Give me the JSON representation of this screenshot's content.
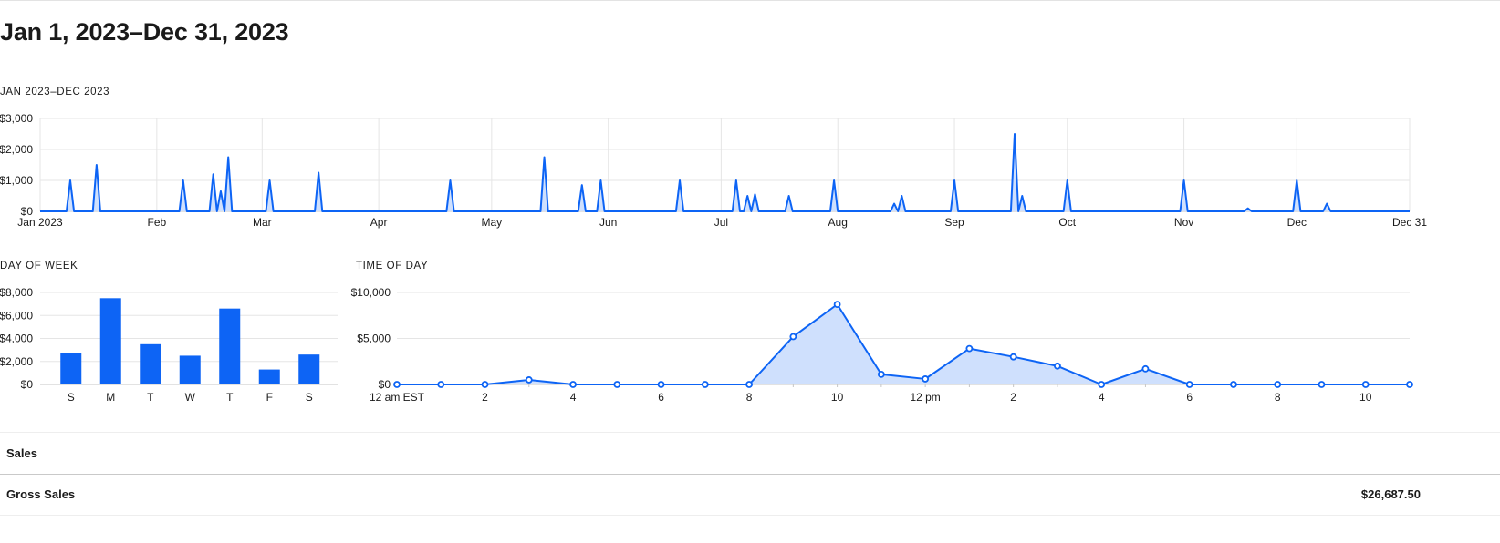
{
  "page": {
    "title": "Jan 1, 2023–Dec 31, 2023"
  },
  "colors": {
    "accent": "#0d64f5",
    "area_fill": "#cfe0fd",
    "grid": "#e5e5e5",
    "axis": "#c6c6c6"
  },
  "chart_data": [
    {
      "id": "daily",
      "type": "area",
      "title": "JAN 2023–DEC 2023",
      "x_range": [
        "2023-01-01",
        "2023-12-31"
      ],
      "x_tick_labels": [
        "Jan 2023",
        "Feb",
        "Mar",
        "Apr",
        "May",
        "Jun",
        "Jul",
        "Aug",
        "Sep",
        "Oct",
        "Nov",
        "Dec",
        "Dec 31"
      ],
      "x_tick_dates": [
        "2023-01-01",
        "2023-02-01",
        "2023-03-01",
        "2023-04-01",
        "2023-05-01",
        "2023-06-01",
        "2023-07-01",
        "2023-08-01",
        "2023-09-01",
        "2023-10-01",
        "2023-11-01",
        "2023-12-01",
        "2023-12-31"
      ],
      "ylim": [
        0,
        3000
      ],
      "y_ticks": [
        0,
        1000,
        2000,
        3000
      ],
      "y_tick_labels": [
        "$0",
        "$1,000",
        "$2,000",
        "$3,000"
      ],
      "grid": true,
      "baseline": 0,
      "points": [
        {
          "x": "2023-01-09",
          "y": 1000
        },
        {
          "x": "2023-01-16",
          "y": 1500
        },
        {
          "x": "2023-02-08",
          "y": 1000
        },
        {
          "x": "2023-02-16",
          "y": 1200
        },
        {
          "x": "2023-02-18",
          "y": 650
        },
        {
          "x": "2023-02-20",
          "y": 1750
        },
        {
          "x": "2023-03-03",
          "y": 1000
        },
        {
          "x": "2023-03-16",
          "y": 1250
        },
        {
          "x": "2023-04-20",
          "y": 1000
        },
        {
          "x": "2023-05-15",
          "y": 1750
        },
        {
          "x": "2023-05-25",
          "y": 850
        },
        {
          "x": "2023-05-30",
          "y": 1000
        },
        {
          "x": "2023-06-20",
          "y": 1000
        },
        {
          "x": "2023-07-05",
          "y": 1000
        },
        {
          "x": "2023-07-08",
          "y": 500
        },
        {
          "x": "2023-07-10",
          "y": 550
        },
        {
          "x": "2023-07-19",
          "y": 500
        },
        {
          "x": "2023-07-31",
          "y": 1000
        },
        {
          "x": "2023-08-16",
          "y": 250
        },
        {
          "x": "2023-08-18",
          "y": 500
        },
        {
          "x": "2023-09-01",
          "y": 1000
        },
        {
          "x": "2023-09-17",
          "y": 2500
        },
        {
          "x": "2023-09-19",
          "y": 500
        },
        {
          "x": "2023-10-01",
          "y": 1000
        },
        {
          "x": "2023-11-01",
          "y": 1000
        },
        {
          "x": "2023-11-18",
          "y": 100
        },
        {
          "x": "2023-12-01",
          "y": 1000
        },
        {
          "x": "2023-12-09",
          "y": 250
        }
      ]
    },
    {
      "id": "weekday",
      "type": "bar",
      "title": "DAY OF WEEK",
      "categories": [
        "S",
        "M",
        "T",
        "W",
        "T",
        "F",
        "S"
      ],
      "values": [
        2700,
        7500,
        3500,
        2500,
        6600,
        1300,
        2600
      ],
      "ylim": [
        0,
        8000
      ],
      "y_ticks": [
        0,
        2000,
        4000,
        6000,
        8000
      ],
      "y_tick_labels": [
        "$0",
        "$2,000",
        "$4,000",
        "$6,000",
        "$8,000"
      ],
      "grid": true
    },
    {
      "id": "hourly",
      "type": "area",
      "title": "TIME OF DAY",
      "categories": [
        "12 am EST",
        "1",
        "2",
        "3",
        "4",
        "5",
        "6",
        "7",
        "8",
        "9",
        "10",
        "11",
        "12 pm",
        "1",
        "2",
        "3",
        "4",
        "5",
        "6",
        "7",
        "8",
        "9",
        "10",
        "11"
      ],
      "x_tick_labels": [
        "12 am EST",
        "",
        "2",
        "",
        "4",
        "",
        "6",
        "",
        "8",
        "",
        "10",
        "",
        "12 pm",
        "",
        "2",
        "",
        "4",
        "",
        "6",
        "",
        "8",
        "",
        "10",
        ""
      ],
      "values": [
        0,
        0,
        0,
        500,
        0,
        0,
        0,
        0,
        0,
        5200,
        8700,
        1100,
        600,
        3900,
        3000,
        2000,
        0,
        1700,
        0,
        0,
        0,
        0,
        0,
        0
      ],
      "ylim": [
        0,
        10000
      ],
      "y_ticks": [
        0,
        5000,
        10000
      ],
      "y_tick_labels": [
        "$0",
        "$5,000",
        "$10,000"
      ],
      "grid": true,
      "markers": true
    }
  ],
  "table": {
    "header_label": "Sales",
    "rows": [
      {
        "label": "Gross Sales",
        "value": "$26,687.50"
      }
    ]
  }
}
